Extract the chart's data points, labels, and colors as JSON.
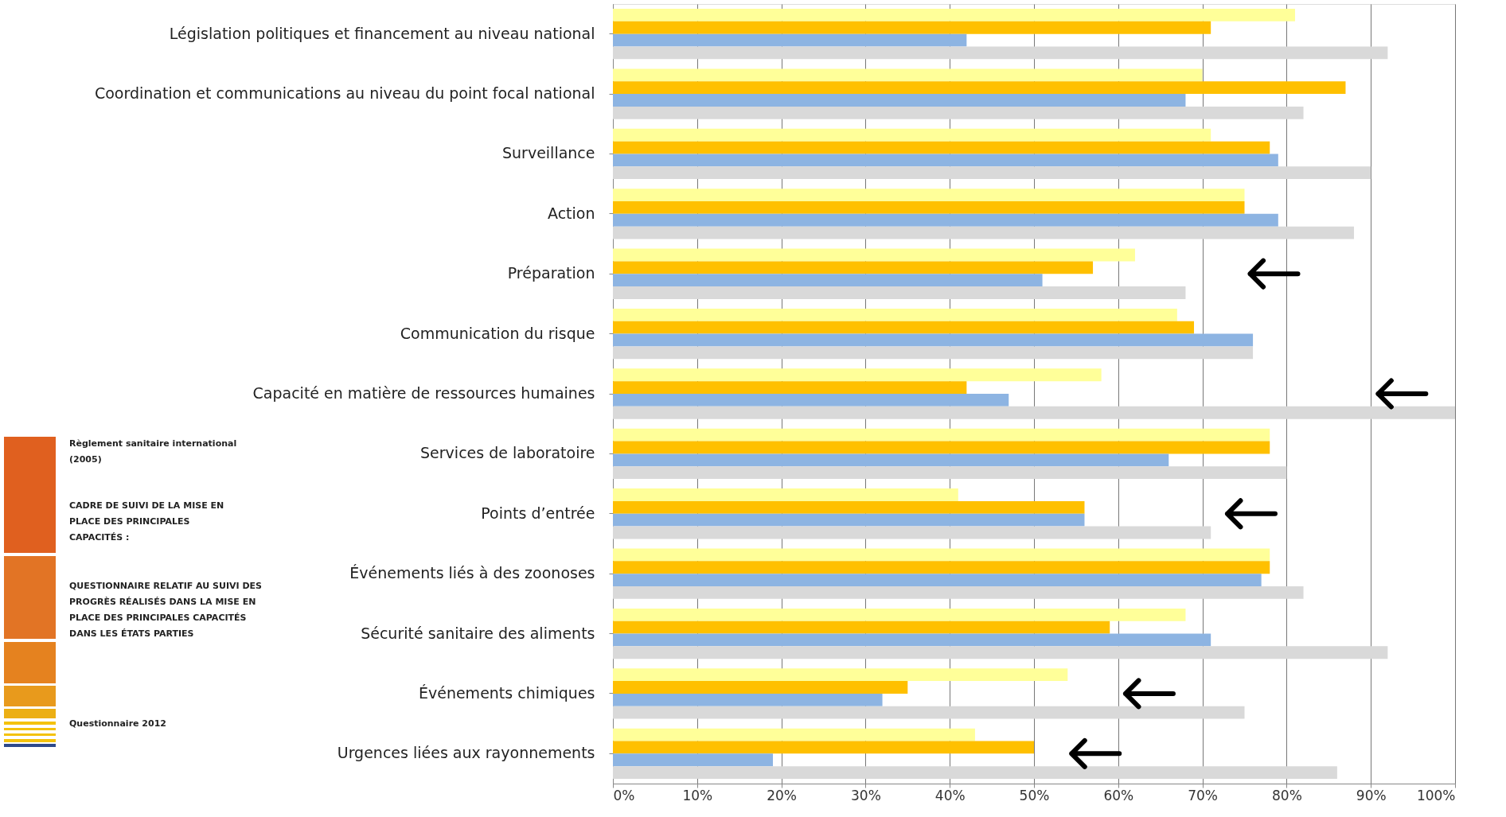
{
  "chart_data": {
    "type": "bar",
    "orientation": "horizontal",
    "categories": [
      "Législation politiques et financement au niveau national",
      "Coordination et communications au niveau du point focal national",
      "Surveillance",
      "Action",
      "Préparation",
      "Communication du risque",
      "Capacité en matière de ressources humaines",
      "Services de laboratoire",
      "Points d’entrée",
      "Événements liés à des zoonoses",
      "Sécurité sanitaire des aliments",
      "Événements chimiques",
      "Urgences liées aux rayonnements"
    ],
    "series": [
      {
        "color": "#ffff99",
        "values": [
          81,
          70,
          71,
          75,
          62,
          67,
          58,
          78,
          41,
          78,
          68,
          54,
          43
        ]
      },
      {
        "color": "#ffc000",
        "values": [
          71,
          87,
          78,
          75,
          57,
          69,
          42,
          78,
          56,
          78,
          59,
          35,
          50
        ]
      },
      {
        "color": "#8db4e2",
        "values": [
          42,
          68,
          79,
          79,
          51,
          76,
          47,
          66,
          56,
          77,
          71,
          32,
          19
        ]
      },
      {
        "color": "#d9d9d9",
        "values": [
          92,
          82,
          90,
          88,
          68,
          76,
          100,
          80,
          71,
          82,
          92,
          75,
          86
        ]
      }
    ],
    "xlim": [
      0,
      100
    ],
    "xticks": [
      {
        "value": 0,
        "label": "0%"
      },
      {
        "value": 10,
        "label": "10%"
      },
      {
        "value": 20,
        "label": "20%"
      },
      {
        "value": 30,
        "label": "30%"
      },
      {
        "value": 40,
        "label": "40%"
      },
      {
        "value": 50,
        "label": "50%"
      },
      {
        "value": 60,
        "label": "60%"
      },
      {
        "value": 70,
        "label": "70%"
      },
      {
        "value": 80,
        "label": "80%"
      },
      {
        "value": 90,
        "label": "90%"
      },
      {
        "value": 100,
        "label": "100%"
      }
    ],
    "grid": "x",
    "legend": false,
    "annotations": [
      "Règlement sanitaire international (2005)",
      "CADRE DE SUIVI DE LA MISE EN PLACE DES PRINCIPALES CAPACITÉS :",
      "QUESTIONNAIRE RELATIF AU SUIVI DES PROGRÈS RÉALISÉS DANS LA MISE EN PLACE DES PRINCIPALES CAPACITÉS DANS LES ÉTATS PARTIES",
      "Questionnaire 2012"
    ]
  }
}
